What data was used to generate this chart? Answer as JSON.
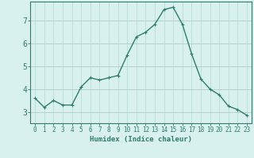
{
  "x": [
    0,
    1,
    2,
    3,
    4,
    5,
    6,
    7,
    8,
    9,
    10,
    11,
    12,
    13,
    14,
    15,
    16,
    17,
    18,
    19,
    20,
    21,
    22,
    23
  ],
  "y": [
    3.6,
    3.2,
    3.5,
    3.3,
    3.3,
    4.1,
    4.5,
    4.4,
    4.5,
    4.6,
    5.5,
    6.3,
    6.5,
    6.85,
    7.5,
    7.6,
    6.85,
    5.55,
    4.45,
    4.0,
    3.75,
    3.25,
    3.1,
    2.85
  ],
  "line_color": "#2d7d6e",
  "marker": "+",
  "marker_size": 3.5,
  "marker_linewidth": 0.8,
  "bg_color": "#d8f0ee",
  "grid_color": "#b0d8d2",
  "grid_major_color": "#c8a0a0",
  "xlabel": "Humidex (Indice chaleur)",
  "xlim": [
    -0.5,
    23.5
  ],
  "ylim": [
    2.5,
    7.85
  ],
  "yticks": [
    3,
    4,
    5,
    6,
    7
  ],
  "xticks": [
    0,
    1,
    2,
    3,
    4,
    5,
    6,
    7,
    8,
    9,
    10,
    11,
    12,
    13,
    14,
    15,
    16,
    17,
    18,
    19,
    20,
    21,
    22,
    23
  ],
  "tick_color": "#2d7d6e",
  "label_color": "#2d7d6e",
  "spine_color": "#2d7d6e",
  "xlabel_fontsize": 6.5,
  "xtick_fontsize": 5.5,
  "ytick_fontsize": 7,
  "linewidth": 1.0
}
